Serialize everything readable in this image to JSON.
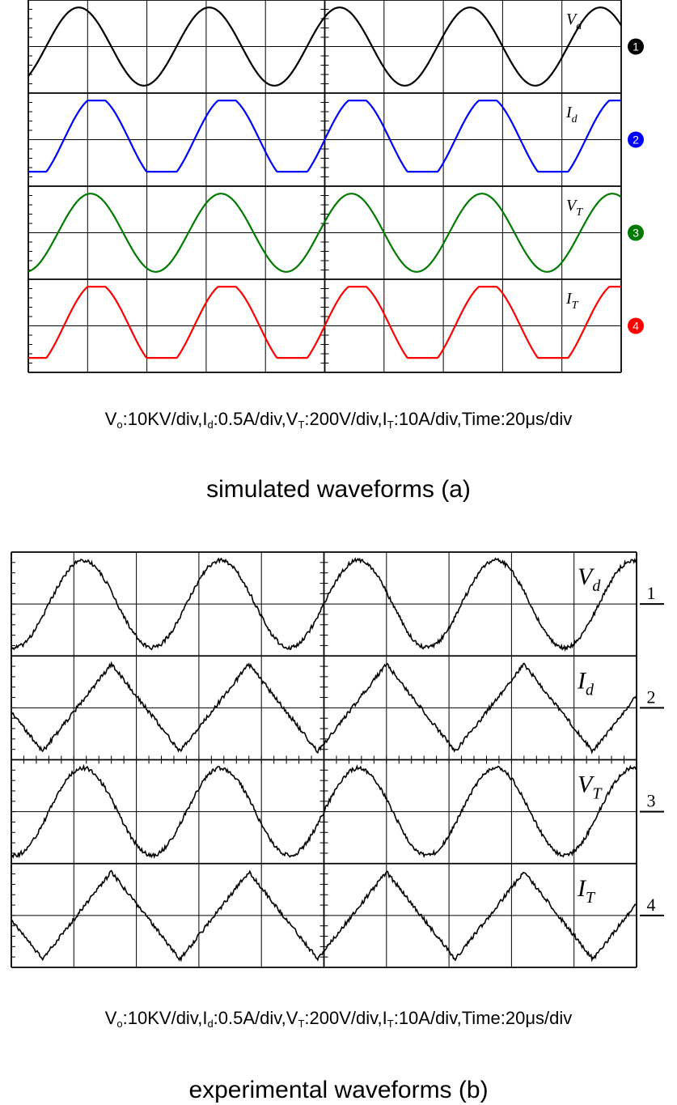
{
  "scale_text_a": {
    "vo": "V",
    "vo_sub": "o",
    "vo_val": ":10KV/div,",
    "id": "I",
    "id_sub": "d",
    "id_val": ":0.5A/div,",
    "vt": "V",
    "vt_sub": "T",
    "vt_val": ":200V/div,",
    "it": "I",
    "it_sub": "T",
    "it_val": ":10A/div,",
    "time": "Time:20μs/div"
  },
  "scale_text_b": {
    "vo": "V",
    "vo_sub": "o",
    "vo_val": ":10KV/div,",
    "id": "I",
    "id_sub": "d",
    "id_val": ":0.5A/div,",
    "vt": "V",
    "vt_sub": "T",
    "vt_val": ":200V/div,",
    "it": "I",
    "it_sub": "T",
    "it_val": ":10A/div,",
    "time": "Time:20μs/div"
  },
  "caption_a": "simulated waveforms (a)",
  "caption_b": "experimental waveforms (b)",
  "chart_data": [
    {
      "type": "line",
      "grid": true,
      "x_divisions": 10,
      "y_divisions": 8,
      "period_div": 2.2,
      "series": [
        {
          "name": "Vd",
          "label_main": "V",
          "label_sub": "d",
          "channel_marker": "❶",
          "color": "#000000",
          "shape": "sine",
          "phase_div": 0.3
        },
        {
          "name": "Id",
          "label_main": "I",
          "label_sub": "d",
          "channel_marker": "2",
          "color": "#0000ff",
          "shape": "clipped-sine",
          "phase_div": 0.6
        },
        {
          "name": "VT",
          "label_main": "V",
          "label_sub": "T",
          "channel_marker": "3",
          "color": "#007a00",
          "shape": "sine",
          "phase_div": 0.5
        },
        {
          "name": "IT",
          "label_main": "I",
          "label_sub": "T",
          "channel_marker": "4",
          "color": "#ff0000",
          "shape": "clipped-sine",
          "phase_div": 0.6
        }
      ]
    },
    {
      "type": "line",
      "grid": true,
      "x_divisions": 10,
      "y_divisions": 8,
      "period_div": 2.2,
      "series": [
        {
          "name": "Vd",
          "label_main": "V",
          "label_sub": "d",
          "channel_marker": "1",
          "color": "#000000",
          "shape": "sine",
          "phase_div": 0.6
        },
        {
          "name": "Id",
          "label_main": "I",
          "label_sub": "d",
          "channel_marker": "2",
          "color": "#000000",
          "shape": "triangle",
          "phase_div": 0.5
        },
        {
          "name": "VT",
          "label_main": "V",
          "label_sub": "T",
          "channel_marker": "3",
          "color": "#000000",
          "shape": "sine",
          "phase_div": 0.6
        },
        {
          "name": "IT",
          "label_main": "I",
          "label_sub": "T",
          "channel_marker": "4",
          "color": "#000000",
          "shape": "triangle",
          "phase_div": 0.5
        }
      ]
    }
  ]
}
